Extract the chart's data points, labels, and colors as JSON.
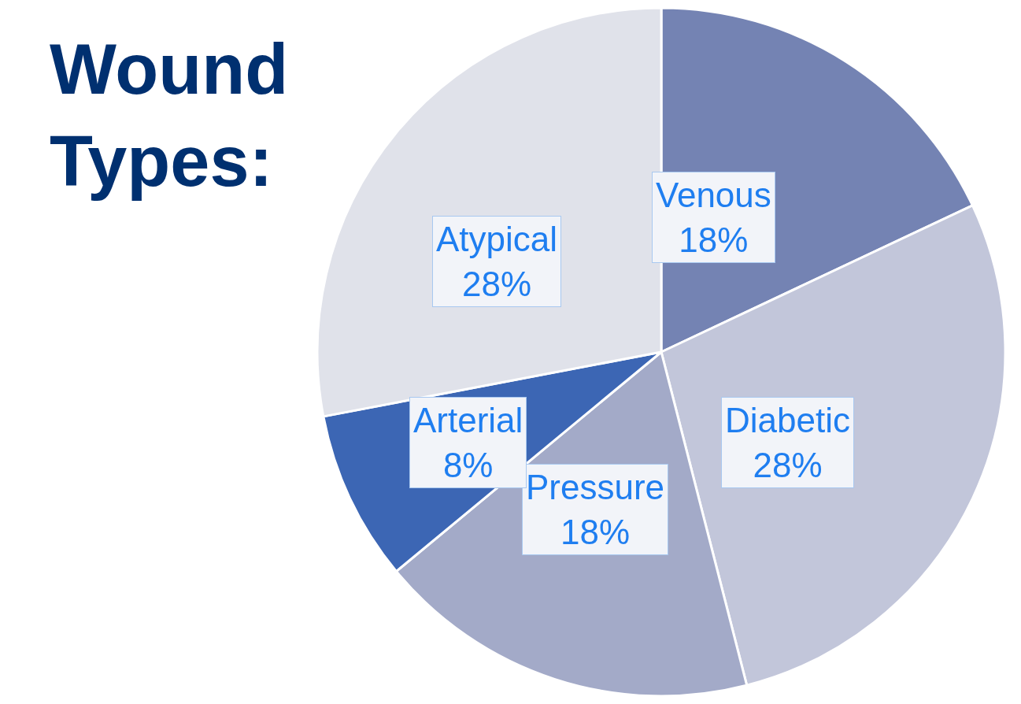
{
  "chart_data": {
    "type": "pie",
    "title": "Wound Types:",
    "categories": [
      "Venous",
      "Diabetic",
      "Pressure",
      "Arterial",
      "Atypical"
    ],
    "values": [
      18,
      28,
      18,
      8,
      28
    ],
    "value_labels": [
      "18%",
      "28%",
      "18%",
      "8%",
      "28%"
    ],
    "colors": [
      "#7483b3",
      "#c2c6da",
      "#a3aac8",
      "#3c66b4",
      "#e0e2ea"
    ],
    "legend": false
  }
}
